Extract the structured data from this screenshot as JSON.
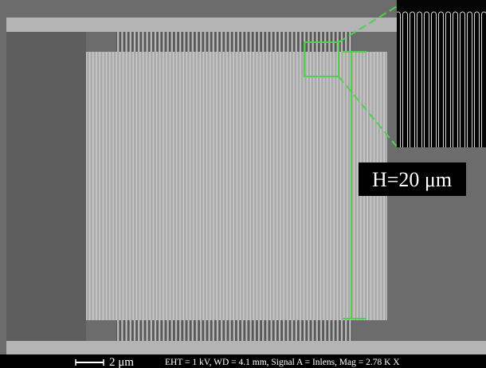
{
  "annotation": {
    "height_label": "H=20 μm"
  },
  "scale_bar": {
    "label": "2 μm"
  },
  "info_bar": {
    "text": "EHT = 1 kV,  WD = 4.1 mm, Signal A = Inlens, Mag = 2.78 K X"
  }
}
